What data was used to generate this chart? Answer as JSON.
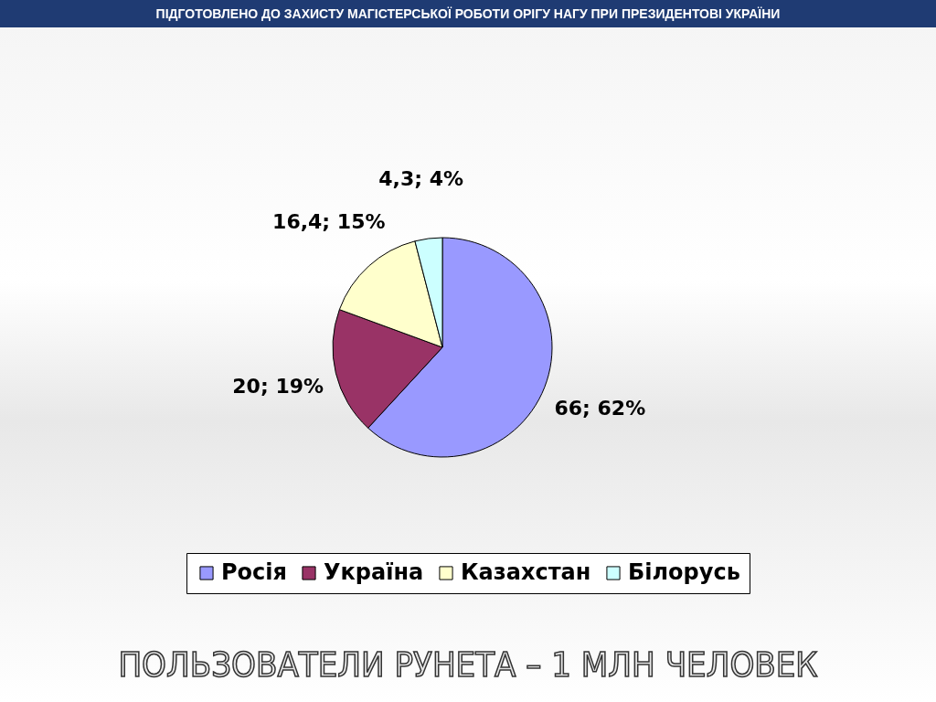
{
  "chart_data": {
    "type": "pie",
    "title": "ПОЛЬЗОВАТЕЛИ РУНЕТА – 1 МЛН ЧЕЛОВЕК",
    "annotations": [
      "ПІДГОТОВЛЕНО ДО ЗАХИСТУ МАГІСТЕРСЬКОЇ РОБОТИ ОРІГУ НАГУ ПРИ ПРЕЗИДЕНТОВІ УКРАЇНИ"
    ],
    "categories": [
      "Росія",
      "Україна",
      "Казахстан",
      "Білорусь"
    ],
    "values": [
      66,
      20,
      16.4,
      4.3
    ],
    "value_labels": [
      "66; 62%",
      "20; 19%",
      "16,4; 15%",
      "4,3; 4%"
    ],
    "colors": [
      "#9999ff",
      "#993366",
      "#ffffcc",
      "#ccffff"
    ],
    "legend": "bottom"
  }
}
